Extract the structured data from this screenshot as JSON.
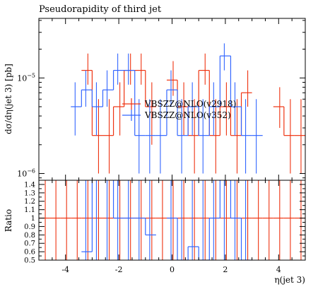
{
  "chart_data": [
    {
      "type": "line",
      "title": "Pseudorapidity of third jet",
      "ylabel": "dσ/dη(jet 3) [pb]",
      "xlabel": "",
      "yscale": "log",
      "xlim": [
        -5,
        5
      ],
      "ylim": [
        8.5e-07,
        4.2e-05
      ],
      "y_ticks": [
        {
          "value": 1e-06,
          "base": "10",
          "exp": "−6"
        },
        {
          "value": 1e-05,
          "base": "10",
          "exp": "−5"
        }
      ],
      "grid": false,
      "legend_position": "center",
      "bin_edges": [
        -5,
        -4.6,
        -4.2,
        -3.8,
        -3.4,
        -3.0,
        -2.6,
        -2.2,
        -1.8,
        -1.4,
        -1.0,
        -0.6,
        -0.2,
        0.2,
        0.6,
        1.0,
        1.4,
        1.8,
        2.2,
        2.6,
        3.0,
        3.4,
        3.8,
        4.2,
        4.6,
        5.0
      ],
      "series": [
        {
          "name": "VBSZZ@NLO(v2918)",
          "color": "#ee3311",
          "values": [
            null,
            null,
            null,
            null,
            1.2e-05,
            2.5e-06,
            2.5e-06,
            5e-06,
            1.2e-05,
            1.2e-05,
            5e-06,
            null,
            9.5e-06,
            5e-06,
            2.5e-06,
            1.2e-05,
            2.5e-06,
            5e-06,
            2.5e-06,
            7e-06,
            null,
            null,
            5e-06,
            2.5e-06,
            2.5e-06
          ],
          "err_low": [
            null,
            null,
            null,
            null,
            8.5e-06,
            1e-06,
            1e-06,
            2.5e-06,
            8.5e-06,
            8.5e-06,
            2e-06,
            null,
            6.5e-06,
            2.5e-06,
            1e-06,
            8.5e-06,
            1e-06,
            2.5e-06,
            1e-06,
            5e-06,
            null,
            null,
            3e-06,
            1e-06,
            1e-06
          ],
          "err_high": [
            null,
            null,
            null,
            null,
            1.8e-05,
            6e-06,
            6e-06,
            9e-06,
            1.8e-05,
            1.8e-05,
            9e-06,
            null,
            1.5e-05,
            9e-06,
            6e-06,
            1.8e-05,
            6e-06,
            9e-06,
            6e-06,
            1.2e-05,
            null,
            null,
            8e-06,
            6e-06,
            6e-06
          ]
        },
        {
          "name": "VBSZZ@NLO(v352)",
          "color": "#3366ff",
          "values": [
            null,
            null,
            null,
            5e-06,
            7.5e-06,
            5e-06,
            7.5e-06,
            1.2e-05,
            1.2e-05,
            2.5e-06,
            2.5e-06,
            2.5e-06,
            7.5e-06,
            2.5e-06,
            5e-06,
            2.5e-06,
            5e-06,
            1.7e-05,
            5e-06,
            2.5e-06,
            2.5e-06,
            null,
            null,
            null,
            null
          ],
          "err_low": [
            null,
            null,
            null,
            2.5e-06,
            5e-06,
            2.5e-06,
            5e-06,
            8.5e-06,
            8.5e-06,
            1e-06,
            1e-06,
            1e-06,
            5e-06,
            1e-06,
            2.5e-06,
            1e-06,
            2.5e-06,
            1.2e-05,
            2.5e-06,
            1e-06,
            1e-06,
            null,
            null,
            null,
            null
          ],
          "err_high": [
            null,
            null,
            null,
            9e-06,
            1.2e-05,
            9e-06,
            1.2e-05,
            1.8e-05,
            1.8e-05,
            6e-06,
            6e-06,
            6e-06,
            1.2e-05,
            6e-06,
            9e-06,
            6e-06,
            9e-06,
            2.3e-05,
            9e-06,
            6e-06,
            6e-06,
            null,
            null,
            null,
            null
          ]
        }
      ]
    },
    {
      "type": "line",
      "title": "",
      "ylabel": "Ratio",
      "xlabel": "η(jet 3)",
      "xlim": [
        -5,
        5
      ],
      "ylim": [
        0.5,
        1.45
      ],
      "x_ticks": [
        -4,
        -2,
        0,
        2,
        4
      ],
      "x_tick_labels": [
        "-4",
        "-2",
        "0",
        "2",
        "4"
      ],
      "y_ticks": [
        0.5,
        0.6,
        0.7,
        0.8,
        0.9,
        1,
        1.1,
        1.2,
        1.3,
        1.4
      ],
      "y_tick_labels": [
        "0.5",
        "0.6",
        "0.7",
        "0.8",
        "0.9",
        "1",
        "1.1",
        "1.2",
        "1.3",
        "1.4"
      ],
      "grid": false,
      "series": [
        {
          "name": "VBSZZ@NLO(v2918)",
          "color": "#ee3311",
          "values": [
            1,
            1,
            1,
            1,
            1,
            1,
            1,
            1,
            1,
            1,
            1,
            1,
            1,
            1,
            1,
            1,
            1,
            1,
            1,
            1,
            1,
            1,
            1,
            1,
            1
          ]
        },
        {
          "name": "VBSZZ@NLO(v352)",
          "color": "#3366ff",
          "values": [
            null,
            null,
            null,
            null,
            0.6,
            1.5,
            1.5,
            1,
            1,
            1,
            0.8,
            null,
            1,
            0.5,
            0.66,
            0.5,
            1,
            1.5,
            1,
            0.5,
            null,
            null,
            null,
            null,
            null
          ]
        }
      ]
    }
  ]
}
